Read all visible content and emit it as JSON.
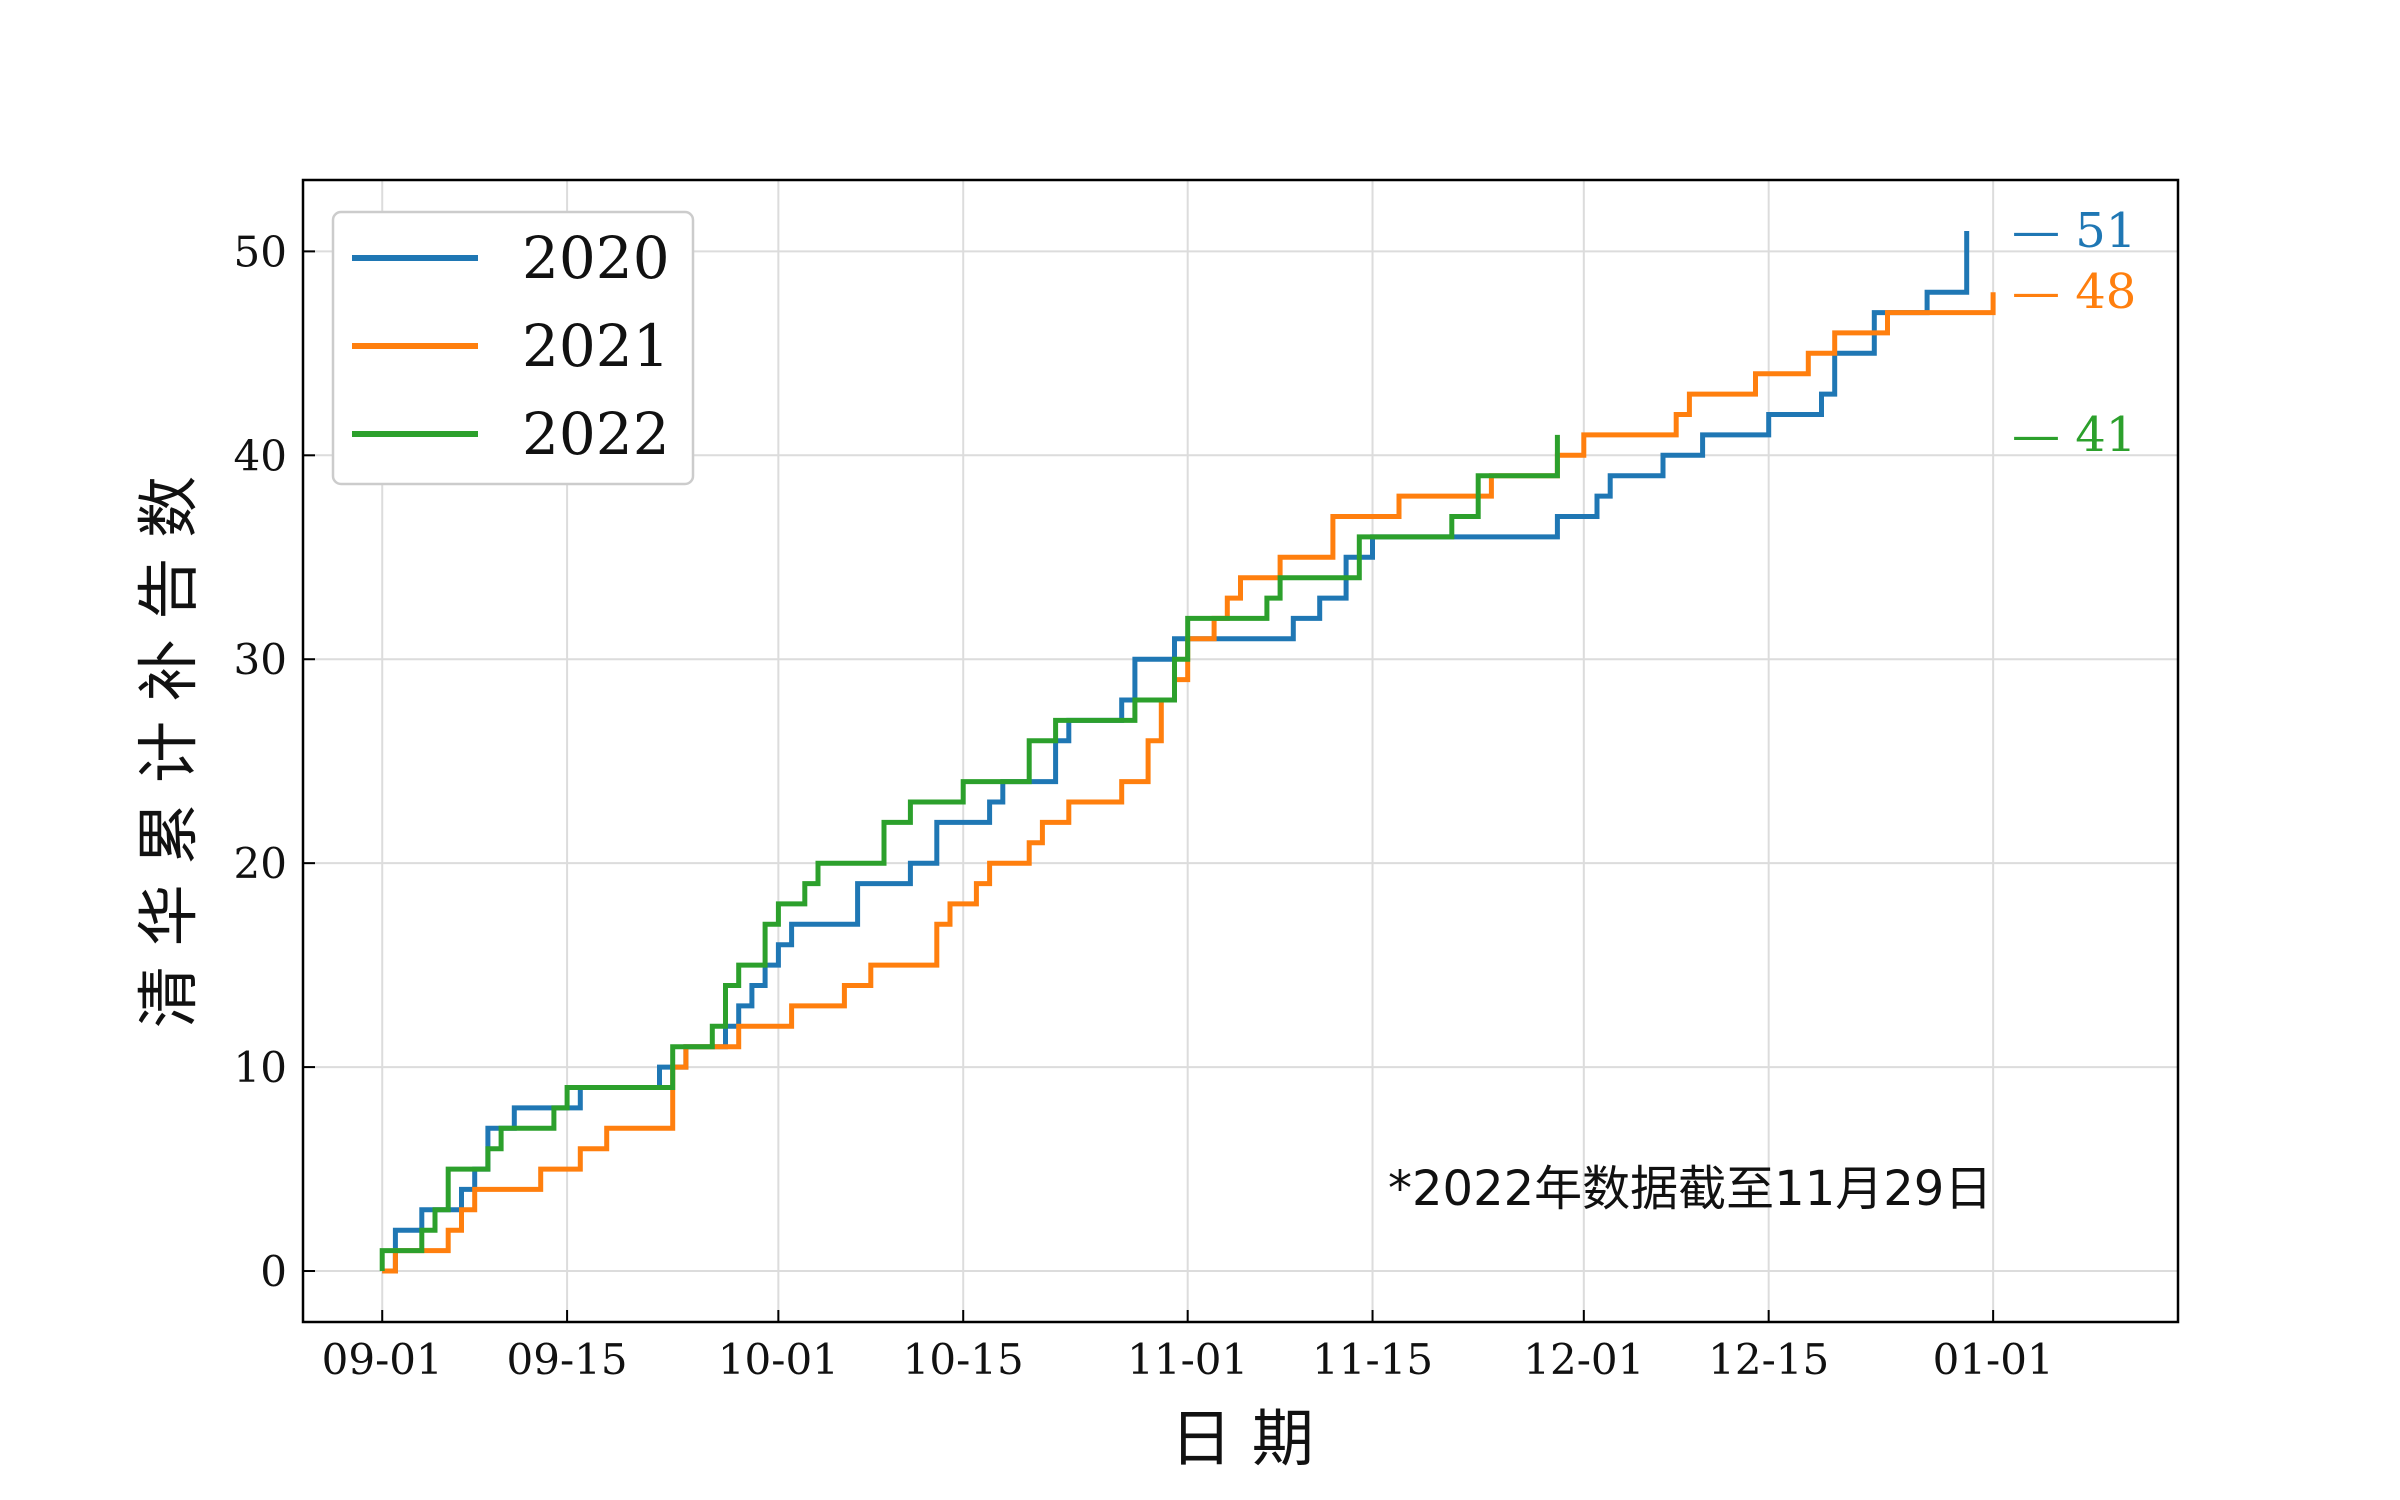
{
  "chart_data": {
    "type": "line",
    "step": true,
    "title": "",
    "xlabel": "日 期",
    "ylabel": "清 华 累 计 补 告 数",
    "x_range": [
      "2022-08-26",
      "2023-01-15"
    ],
    "ylim": [
      -2.5,
      53.5
    ],
    "x_ticks": [
      "2022-09-01",
      "2022-09-15",
      "2022-10-01",
      "2022-10-15",
      "2022-11-01",
      "2022-11-15",
      "2022-12-01",
      "2022-12-15",
      "2023-01-01"
    ],
    "x_tick_labels": [
      "09-01",
      "09-15",
      "10-01",
      "10-15",
      "11-01",
      "11-15",
      "12-01",
      "12-15",
      "01-01"
    ],
    "y_ticks": [
      0,
      10,
      20,
      30,
      40,
      50
    ],
    "grid": true,
    "legend": {
      "placement": "top-left",
      "entries": [
        "2020",
        "2021",
        "2022"
      ]
    },
    "annotation": "*2022年数据截至11月29日",
    "series": [
      {
        "name": "2020",
        "color": "#1f77b4",
        "end_label": "— 51",
        "points": [
          [
            "2022-09-01",
            0
          ],
          [
            "2022-09-02",
            1
          ],
          [
            "2022-09-02",
            2
          ],
          [
            "2022-09-04",
            3
          ],
          [
            "2022-09-07",
            4
          ],
          [
            "2022-09-08",
            5
          ],
          [
            "2022-09-09",
            6
          ],
          [
            "2022-09-09",
            7
          ],
          [
            "2022-09-11",
            8
          ],
          [
            "2022-09-16",
            9
          ],
          [
            "2022-09-22",
            10
          ],
          [
            "2022-09-24",
            11
          ],
          [
            "2022-09-27",
            12
          ],
          [
            "2022-09-28",
            13
          ],
          [
            "2022-09-29",
            14
          ],
          [
            "2022-09-30",
            15
          ],
          [
            "2022-10-01",
            16
          ],
          [
            "2022-10-02",
            17
          ],
          [
            "2022-10-07",
            19
          ],
          [
            "2022-10-11",
            20
          ],
          [
            "2022-10-13",
            22
          ],
          [
            "2022-10-17",
            23
          ],
          [
            "2022-10-18",
            24
          ],
          [
            "2022-10-22",
            25
          ],
          [
            "2022-10-22",
            26
          ],
          [
            "2022-10-23",
            27
          ],
          [
            "2022-10-27",
            28
          ],
          [
            "2022-10-28",
            29
          ],
          [
            "2022-10-28",
            30
          ],
          [
            "2022-10-31",
            31
          ],
          [
            "2022-11-09",
            32
          ],
          [
            "2022-11-11",
            33
          ],
          [
            "2022-11-13",
            34
          ],
          [
            "2022-11-13",
            35
          ],
          [
            "2022-11-15",
            36
          ],
          [
            "2022-11-29",
            37
          ],
          [
            "2022-12-02",
            38
          ],
          [
            "2022-12-03",
            39
          ],
          [
            "2022-12-07",
            40
          ],
          [
            "2022-12-10",
            41
          ],
          [
            "2022-12-15",
            42
          ],
          [
            "2022-12-19",
            43
          ],
          [
            "2022-12-20",
            44
          ],
          [
            "2022-12-20",
            45
          ],
          [
            "2022-12-23",
            46
          ],
          [
            "2022-12-23",
            47
          ],
          [
            "2022-12-27",
            48
          ],
          [
            "2022-12-30",
            49
          ],
          [
            "2022-12-30",
            50
          ],
          [
            "2022-12-30",
            51
          ]
        ]
      },
      {
        "name": "2021",
        "color": "#ff7f0e",
        "end_label": "— 48",
        "points": [
          [
            "2022-09-01",
            0
          ],
          [
            "2022-09-02",
            1
          ],
          [
            "2022-09-06",
            2
          ],
          [
            "2022-09-07",
            3
          ],
          [
            "2022-09-08",
            4
          ],
          [
            "2022-09-13",
            5
          ],
          [
            "2022-09-16",
            6
          ],
          [
            "2022-09-18",
            7
          ],
          [
            "2022-09-23",
            8
          ],
          [
            "2022-09-23",
            9
          ],
          [
            "2022-09-23",
            10
          ],
          [
            "2022-09-24",
            11
          ],
          [
            "2022-09-28",
            12
          ],
          [
            "2022-10-02",
            13
          ],
          [
            "2022-10-06",
            14
          ],
          [
            "2022-10-08",
            15
          ],
          [
            "2022-10-13",
            16
          ],
          [
            "2022-10-13",
            17
          ],
          [
            "2022-10-14",
            18
          ],
          [
            "2022-10-16",
            19
          ],
          [
            "2022-10-17",
            20
          ],
          [
            "2022-10-20",
            21
          ],
          [
            "2022-10-21",
            22
          ],
          [
            "2022-10-23",
            23
          ],
          [
            "2022-10-27",
            24
          ],
          [
            "2022-10-29",
            25
          ],
          [
            "2022-10-29",
            26
          ],
          [
            "2022-10-30",
            27
          ],
          [
            "2022-10-30",
            28
          ],
          [
            "2022-10-31",
            29
          ],
          [
            "2022-11-01",
            30
          ],
          [
            "2022-11-01",
            31
          ],
          [
            "2022-11-03",
            32
          ],
          [
            "2022-11-04",
            33
          ],
          [
            "2022-11-05",
            34
          ],
          [
            "2022-11-08",
            35
          ],
          [
            "2022-11-12",
            36
          ],
          [
            "2022-11-12",
            37
          ],
          [
            "2022-11-17",
            38
          ],
          [
            "2022-11-24",
            39
          ],
          [
            "2022-11-29",
            40
          ],
          [
            "2022-12-01",
            41
          ],
          [
            "2022-12-08",
            42
          ],
          [
            "2022-12-09",
            43
          ],
          [
            "2022-12-14",
            44
          ],
          [
            "2022-12-18",
            45
          ],
          [
            "2022-12-20",
            46
          ],
          [
            "2022-12-24",
            47
          ],
          [
            "2023-01-01",
            48
          ]
        ]
      },
      {
        "name": "2022",
        "color": "#2ca02c",
        "end_label": "— 41",
        "points": [
          [
            "2022-09-01",
            0
          ],
          [
            "2022-09-01",
            1
          ],
          [
            "2022-09-04",
            2
          ],
          [
            "2022-09-05",
            3
          ],
          [
            "2022-09-06",
            4
          ],
          [
            "2022-09-06",
            5
          ],
          [
            "2022-09-09",
            6
          ],
          [
            "2022-09-10",
            7
          ],
          [
            "2022-09-14",
            8
          ],
          [
            "2022-09-15",
            9
          ],
          [
            "2022-09-23",
            10
          ],
          [
            "2022-09-23",
            11
          ],
          [
            "2022-09-26",
            12
          ],
          [
            "2022-09-27",
            13
          ],
          [
            "2022-09-27",
            14
          ],
          [
            "2022-09-28",
            15
          ],
          [
            "2022-09-30",
            16
          ],
          [
            "2022-09-30",
            17
          ],
          [
            "2022-10-01",
            18
          ],
          [
            "2022-10-03",
            19
          ],
          [
            "2022-10-04",
            20
          ],
          [
            "2022-10-09",
            21
          ],
          [
            "2022-10-09",
            22
          ],
          [
            "2022-10-11",
            23
          ],
          [
            "2022-10-15",
            24
          ],
          [
            "2022-10-20",
            25
          ],
          [
            "2022-10-20",
            26
          ],
          [
            "2022-10-22",
            27
          ],
          [
            "2022-10-28",
            28
          ],
          [
            "2022-10-31",
            29
          ],
          [
            "2022-10-31",
            30
          ],
          [
            "2022-11-01",
            31
          ],
          [
            "2022-11-01",
            32
          ],
          [
            "2022-11-07",
            33
          ],
          [
            "2022-11-08",
            34
          ],
          [
            "2022-11-14",
            35
          ],
          [
            "2022-11-14",
            36
          ],
          [
            "2022-11-21",
            37
          ],
          [
            "2022-11-23",
            38
          ],
          [
            "2022-11-23",
            39
          ],
          [
            "2022-11-29",
            40
          ],
          [
            "2022-11-29",
            41
          ]
        ]
      }
    ]
  }
}
